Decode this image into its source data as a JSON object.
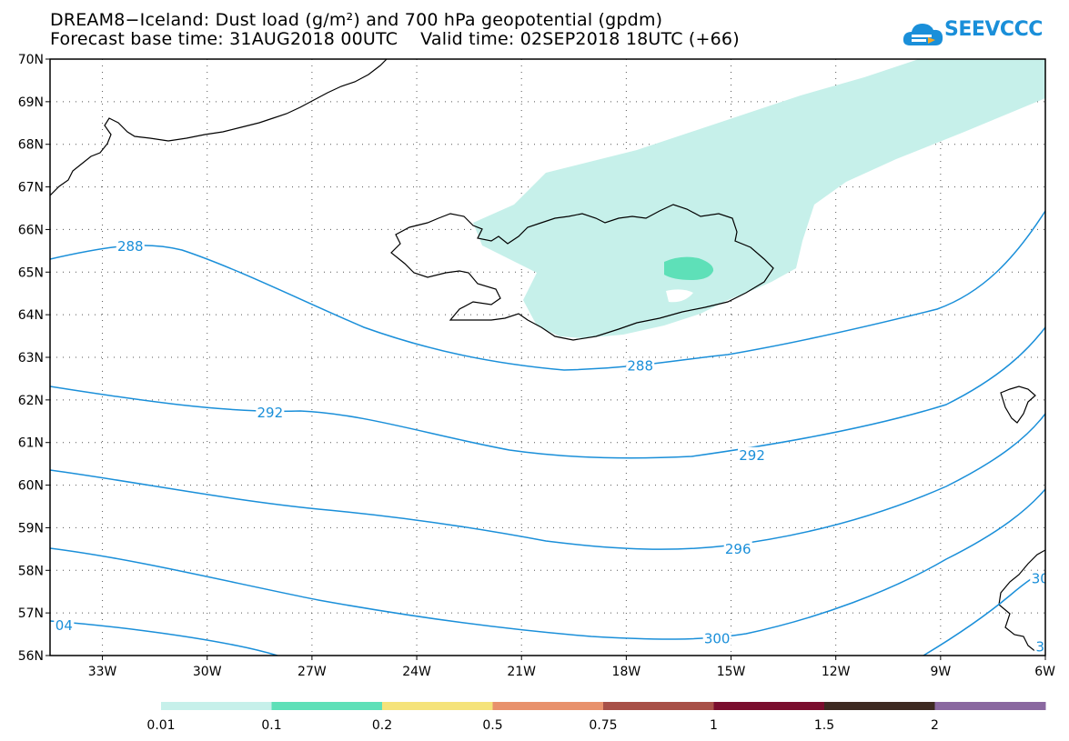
{
  "header": {
    "title_line1": "DREAM8−Iceland: Dust load (g/m²) and 700 hPa geopotential (gpdm)",
    "title_line2": "Forecast base time: 31AUG2018 00UTC    Valid time: 02SEP2018 18UTC (+66)"
  },
  "logo": {
    "text": "SEEVCCC",
    "icon": "cloud-arrow-icon",
    "color": "#1a8fd9"
  },
  "map": {
    "lon_range": [
      -34.5,
      -6
    ],
    "lat_range": [
      56,
      70
    ],
    "lat_labels": [
      "70N",
      "69N",
      "68N",
      "67N",
      "66N",
      "65N",
      "64N",
      "63N",
      "62N",
      "61N",
      "60N",
      "59N",
      "58N",
      "57N",
      "56N"
    ],
    "lat_values": [
      70,
      69,
      68,
      67,
      66,
      65,
      64,
      63,
      62,
      61,
      60,
      59,
      58,
      57,
      56
    ],
    "lon_labels": [
      "33W",
      "30W",
      "27W",
      "24W",
      "21W",
      "18W",
      "15W",
      "12W",
      "9W",
      "6W"
    ],
    "lon_values": [
      -33,
      -30,
      -27,
      -24,
      -21,
      -18,
      -15,
      -12,
      -9,
      -6
    ],
    "grid": "dotted",
    "contour_color": "#1a8fd9",
    "contour_labels": [
      {
        "text": "288",
        "lon": -32.2,
        "lat": 65.6
      },
      {
        "text": "288",
        "lon": -17.6,
        "lat": 62.8
      },
      {
        "text": "292",
        "lon": -28.2,
        "lat": 61.7
      },
      {
        "text": "292",
        "lon": -14.4,
        "lat": 60.7
      },
      {
        "text": "296",
        "lon": -14.8,
        "lat": 58.5
      },
      {
        "text": "300",
        "lon": -15.4,
        "lat": 56.4
      },
      {
        "text": "04",
        "lon": -34.1,
        "lat": 56.7
      },
      {
        "text": "30",
        "lon": -6.15,
        "lat": 57.8
      },
      {
        "text": "3",
        "lon": -6.15,
        "lat": 56.2
      }
    ]
  },
  "colorbar": {
    "colors": [
      "#c6f0ea",
      "#5ee0b8",
      "#f5e37a",
      "#e8916c",
      "#a85048",
      "#7a0e2e",
      "#3e2a22",
      "#8a68a0"
    ],
    "labels": [
      "0.01",
      "0.1",
      "0.2",
      "0.5",
      "0.75",
      "1",
      "1.5",
      "2"
    ]
  }
}
